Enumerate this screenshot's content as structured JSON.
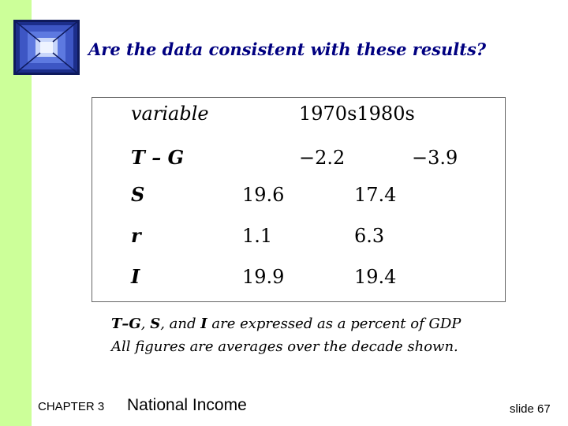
{
  "slide": {
    "title": "Are the data consistent with these results?"
  },
  "table": {
    "header_variable": "variable",
    "header_decades": "1970s1980s",
    "rows": [
      {
        "variable": "T – G",
        "v1970s": "−2.2",
        "v1980s": "−3.9"
      },
      {
        "variable": "S",
        "v1970s": "19.6",
        "v1980s": "17.4"
      },
      {
        "variable": "r",
        "v1970s": "1.1",
        "v1980s": "6.3"
      },
      {
        "variable": "I",
        "v1970s": "19.9",
        "v1980s": "19.4"
      }
    ]
  },
  "footnote": {
    "line1_tg": "T–G",
    "line1_sep1": ", ",
    "line1_s": "S",
    "line1_sep2": ", and ",
    "line1_i": "I",
    "line1_rest": " are expressed as a percent of GDP",
    "line2": "All figures are averages over the decade shown."
  },
  "footer": {
    "chapter": "CHAPTER 3",
    "chapter_title": "National Income",
    "slide_number": "slide 67"
  },
  "colors": {
    "left_bar": "#ccff99",
    "title": "#000080",
    "logo": "#1c2e8a"
  }
}
